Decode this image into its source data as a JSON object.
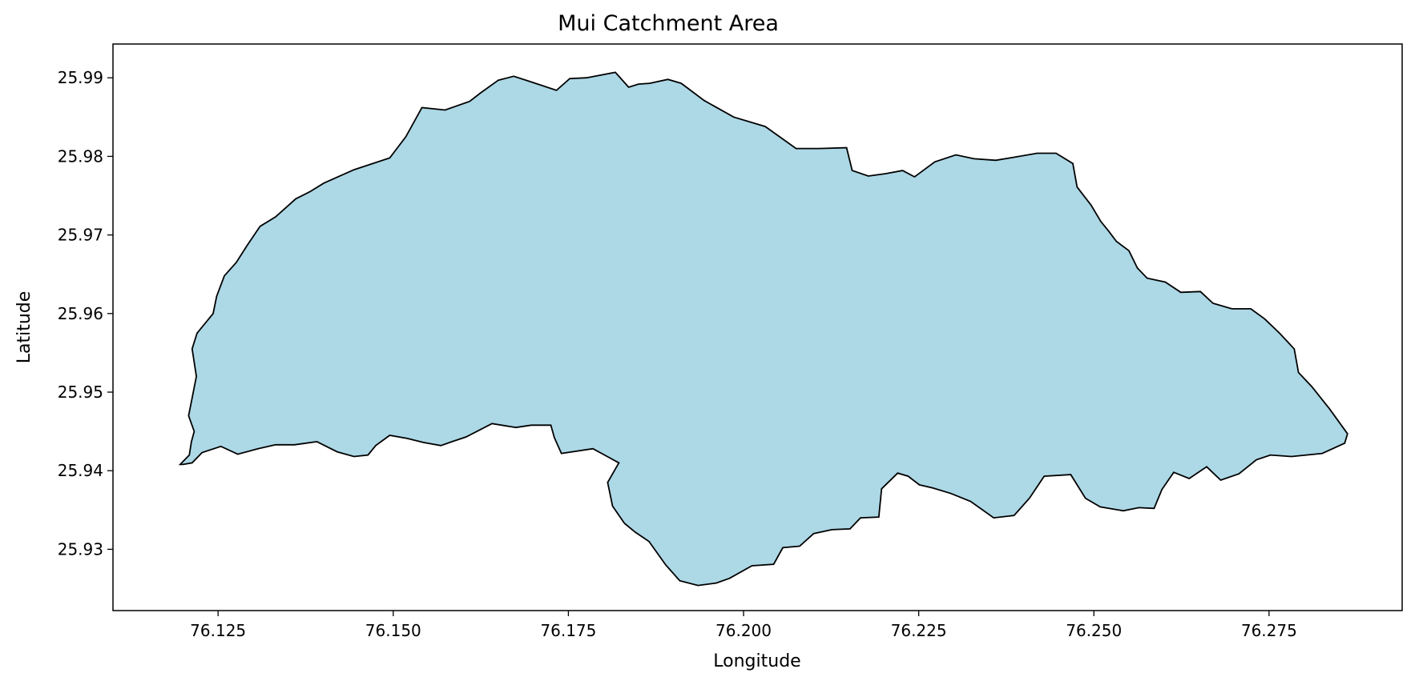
{
  "chart_data": {
    "type": "map",
    "title": "Mui Catchment Area",
    "xlabel": "Longitude",
    "ylabel": "Latitude",
    "xlim": [
      76.11,
      76.294
    ],
    "ylim": [
      25.9222,
      25.9943
    ],
    "x_ticks": [
      76.125,
      76.15,
      76.175,
      76.2,
      76.225,
      76.25,
      76.275
    ],
    "x_tick_labels": [
      "76.125",
      "76.150",
      "76.175",
      "76.200",
      "76.225",
      "76.250",
      "76.275"
    ],
    "y_ticks": [
      25.93,
      25.94,
      25.95,
      25.96,
      25.97,
      25.98,
      25.99
    ],
    "y_tick_labels": [
      "25.93",
      "25.94",
      "25.95",
      "25.96",
      "25.97",
      "25.98",
      "25.99"
    ],
    "grid": false,
    "colors": {
      "fill": "#add8e6",
      "edge": "#000000"
    },
    "boundary_lonlat": [
      [
        76.1196,
        25.9408
      ],
      [
        76.1209,
        25.942
      ],
      [
        76.1212,
        25.9437
      ],
      [
        76.1216,
        25.945
      ],
      [
        76.1208,
        25.947
      ],
      [
        76.1219,
        25.952
      ],
      [
        76.1213,
        25.9555
      ],
      [
        76.122,
        25.9575
      ],
      [
        76.1243,
        25.96
      ],
      [
        76.1248,
        25.9622
      ],
      [
        76.1259,
        25.9648
      ],
      [
        76.1276,
        25.9665
      ],
      [
        76.1291,
        25.9686
      ],
      [
        76.131,
        25.9711
      ],
      [
        76.1332,
        25.9723
      ],
      [
        76.1361,
        25.9746
      ],
      [
        76.1381,
        25.9755
      ],
      [
        76.1401,
        25.9766
      ],
      [
        76.1444,
        25.9783
      ],
      [
        76.1495,
        25.9798
      ],
      [
        76.1518,
        25.9825
      ],
      [
        76.1541,
        25.9862
      ],
      [
        76.1574,
        25.9859
      ],
      [
        76.1609,
        25.987
      ],
      [
        76.1625,
        25.9881
      ],
      [
        76.165,
        25.9897
      ],
      [
        76.1672,
        25.9902
      ],
      [
        76.1696,
        25.9895
      ],
      [
        76.1733,
        25.9884
      ],
      [
        76.1752,
        25.9899
      ],
      [
        76.1776,
        25.99
      ],
      [
        76.1817,
        25.9907
      ],
      [
        76.1836,
        25.9888
      ],
      [
        76.185,
        25.9892
      ],
      [
        76.1866,
        25.9893
      ],
      [
        76.1892,
        25.9898
      ],
      [
        76.1911,
        25.9893
      ],
      [
        76.1944,
        25.9871
      ],
      [
        76.1986,
        25.985
      ],
      [
        76.2031,
        25.9838
      ],
      [
        76.2075,
        25.981
      ],
      [
        76.2107,
        25.981
      ],
      [
        76.2147,
        25.9811
      ],
      [
        76.2155,
        25.9782
      ],
      [
        76.2178,
        25.9775
      ],
      [
        76.2203,
        25.9778
      ],
      [
        76.2227,
        25.9782
      ],
      [
        76.2244,
        25.9774
      ],
      [
        76.2273,
        25.9793
      ],
      [
        76.2303,
        25.9802
      ],
      [
        76.2329,
        25.9797
      ],
      [
        76.236,
        25.9795
      ],
      [
        76.2387,
        25.9799
      ],
      [
        76.2419,
        25.9804
      ],
      [
        76.2446,
        25.9804
      ],
      [
        76.247,
        25.9791
      ],
      [
        76.2476,
        25.9761
      ],
      [
        76.2496,
        25.9738
      ],
      [
        76.251,
        25.9717
      ],
      [
        76.2521,
        25.9705
      ],
      [
        76.2532,
        25.9692
      ],
      [
        76.255,
        25.968
      ],
      [
        76.2562,
        25.9658
      ],
      [
        76.2576,
        25.9645
      ],
      [
        76.2602,
        25.964
      ],
      [
        76.2624,
        25.9627
      ],
      [
        76.2652,
        25.9628
      ],
      [
        76.267,
        25.9613
      ],
      [
        76.2697,
        25.9606
      ],
      [
        76.2724,
        25.9606
      ],
      [
        76.2744,
        25.9593
      ],
      [
        76.2765,
        25.9575
      ],
      [
        76.2786,
        25.9555
      ],
      [
        76.2792,
        25.9525
      ],
      [
        76.2811,
        25.9507
      ],
      [
        76.2836,
        25.9479
      ],
      [
        76.2862,
        25.9447
      ],
      [
        76.2858,
        25.9435
      ],
      [
        76.2826,
        25.9422
      ],
      [
        76.2782,
        25.9418
      ],
      [
        76.2752,
        25.942
      ],
      [
        76.2732,
        25.9414
      ],
      [
        76.2707,
        25.9396
      ],
      [
        76.2681,
        25.9388
      ],
      [
        76.2661,
        25.9405
      ],
      [
        76.2636,
        25.939
      ],
      [
        76.2614,
        25.9398
      ],
      [
        76.2597,
        25.9376
      ],
      [
        76.2586,
        25.9352
      ],
      [
        76.2564,
        25.9353
      ],
      [
        76.2542,
        25.9349
      ],
      [
        76.2509,
        25.9354
      ],
      [
        76.2488,
        25.9365
      ],
      [
        76.2467,
        25.9395
      ],
      [
        76.2429,
        25.9393
      ],
      [
        76.2408,
        25.9365
      ],
      [
        76.2386,
        25.9343
      ],
      [
        76.2357,
        25.934
      ],
      [
        76.2324,
        25.9361
      ],
      [
        76.2296,
        25.9371
      ],
      [
        76.227,
        25.9378
      ],
      [
        76.2251,
        25.9382
      ],
      [
        76.2235,
        25.9393
      ],
      [
        76.222,
        25.9397
      ],
      [
        76.2197,
        25.9377
      ],
      [
        76.2193,
        25.9341
      ],
      [
        76.2167,
        25.934
      ],
      [
        76.2152,
        25.9326
      ],
      [
        76.2126,
        25.9325
      ],
      [
        76.21,
        25.932
      ],
      [
        76.208,
        25.9304
      ],
      [
        76.2056,
        25.9302
      ],
      [
        76.2043,
        25.9281
      ],
      [
        76.2012,
        25.9279
      ],
      [
        76.198,
        25.9263
      ],
      [
        76.1961,
        25.9257
      ],
      [
        76.1935,
        25.9254
      ],
      [
        76.1909,
        25.926
      ],
      [
        76.1889,
        25.928
      ],
      [
        76.1865,
        25.931
      ],
      [
        76.1845,
        25.9322
      ],
      [
        76.183,
        25.9333
      ],
      [
        76.1813,
        25.9355
      ],
      [
        76.1806,
        25.9385
      ],
      [
        76.1822,
        25.941
      ],
      [
        76.1785,
        25.9428
      ],
      [
        76.174,
        25.9422
      ],
      [
        76.173,
        25.9442
      ],
      [
        76.1725,
        25.9458
      ],
      [
        76.1697,
        25.9458
      ],
      [
        76.1675,
        25.9455
      ],
      [
        76.1641,
        25.946
      ],
      [
        76.1604,
        25.9443
      ],
      [
        76.1584,
        25.9437
      ],
      [
        76.1568,
        25.9432
      ],
      [
        76.1543,
        25.9436
      ],
      [
        76.152,
        25.9441
      ],
      [
        76.1495,
        25.9445
      ],
      [
        76.1475,
        25.9432
      ],
      [
        76.1464,
        25.942
      ],
      [
        76.1444,
        25.9418
      ],
      [
        76.142,
        25.9424
      ],
      [
        76.1391,
        25.9437
      ],
      [
        76.1359,
        25.9433
      ],
      [
        76.1332,
        25.9433
      ],
      [
        76.1307,
        25.9428
      ],
      [
        76.1278,
        25.9421
      ],
      [
        76.1254,
        25.9431
      ],
      [
        76.1227,
        25.9423
      ],
      [
        76.1213,
        25.941
      ],
      [
        76.12,
        25.9408
      ]
    ]
  }
}
